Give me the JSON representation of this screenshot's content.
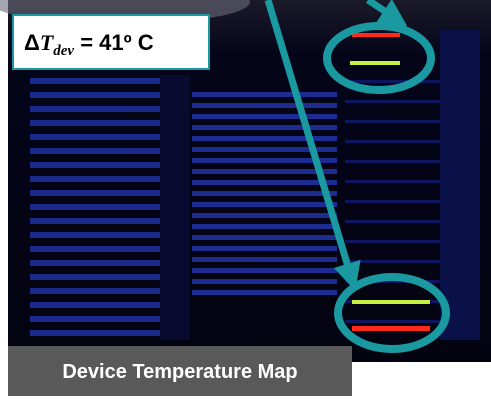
{
  "annotation": {
    "delta": "Δ",
    "variable": "T",
    "subscript": "dev",
    "rest": " = 41º C"
  },
  "caption": "Device Temperature Map"
}
